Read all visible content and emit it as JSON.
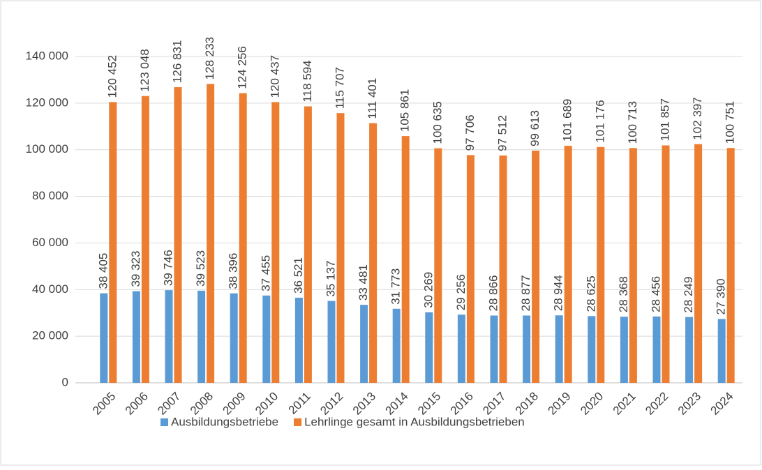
{
  "chart_data": {
    "type": "bar",
    "categories": [
      "2005",
      "2006",
      "2007",
      "2008",
      "2009",
      "2010",
      "2011",
      "2012",
      "2013",
      "2014",
      "2015",
      "2016",
      "2017",
      "2018",
      "2019",
      "2020",
      "2021",
      "2022",
      "2023",
      "2024"
    ],
    "series": [
      {
        "name": "Ausbildungsbetriebe",
        "color": "#5b9bd5",
        "values": [
          38405,
          39323,
          39746,
          39523,
          38396,
          37455,
          36521,
          35137,
          33481,
          31773,
          30269,
          29256,
          28866,
          28877,
          28944,
          28625,
          28368,
          28456,
          28249,
          27390
        ],
        "value_labels": [
          "38 405",
          "39 323",
          "39 746",
          "39 523",
          "38 396",
          "37 455",
          "36 521",
          "35 137",
          "33 481",
          "31 773",
          "30 269",
          "29 256",
          "28 866",
          "28 877",
          "28 944",
          "28 625",
          "28 368",
          "28 456",
          "28 249",
          "27 390"
        ]
      },
      {
        "name": "Lehrlinge gesamt in Ausbildungsbetrieben",
        "color": "#ed7d31",
        "values": [
          120452,
          123048,
          126831,
          128233,
          124256,
          120437,
          118594,
          115707,
          111401,
          105861,
          100635,
          97706,
          97512,
          99613,
          101689,
          101176,
          100713,
          101857,
          102397,
          100751
        ],
        "value_labels": [
          "120 452",
          "123 048",
          "126 831",
          "128 233",
          "124 256",
          "120 437",
          "118 594",
          "115 707",
          "111 401",
          "105 861",
          "100 635",
          "97 706",
          "97 512",
          "99 613",
          "101 689",
          "101 176",
          "100 713",
          "101 857",
          "102 397",
          "100 751"
        ]
      }
    ],
    "ylim": [
      0,
      140000
    ],
    "yticks": [
      0,
      {
        "value": 20000,
        "label": "20 000"
      },
      {
        "value": 40000,
        "label": "40 000"
      },
      {
        "value": 60000,
        "label": "60 000"
      },
      {
        "value": 80000,
        "label": "80 000"
      },
      {
        "value": 100000,
        "label": "100 000"
      },
      {
        "value": 120000,
        "label": "120 000"
      },
      {
        "value": 140000,
        "label": "140 000"
      }
    ],
    "grid": true,
    "legend": "bottom"
  }
}
